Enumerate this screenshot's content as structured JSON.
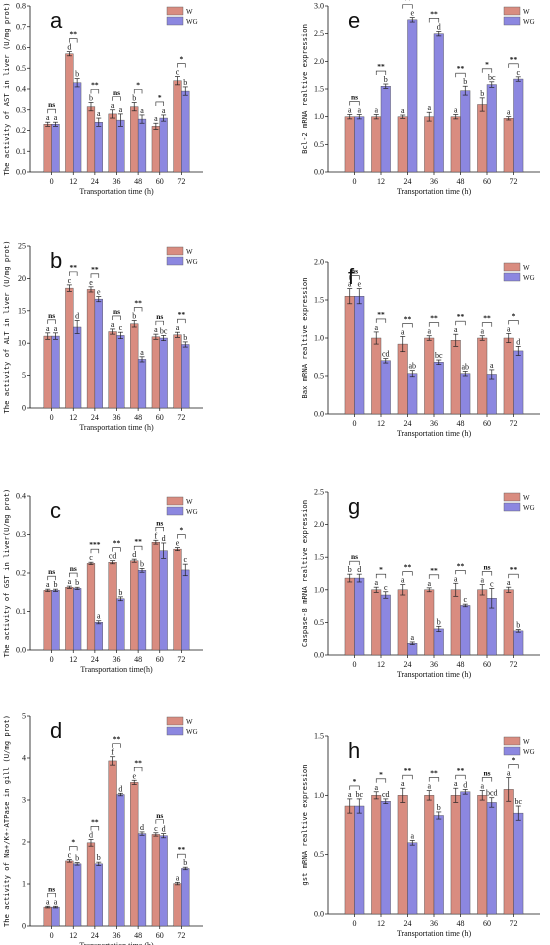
{
  "colors": {
    "W": "#d98c80",
    "WG": "#8c87e0"
  },
  "chart_data": [
    {
      "panel": "a",
      "type": "bar",
      "ylabel": "The activity of AST in liver (U/mg prot)",
      "xlabel": "Transportation time (h)",
      "categories": [
        "0",
        "12",
        "24",
        "36",
        "48",
        "60",
        "72"
      ],
      "ylim": [
        0,
        0.8
      ],
      "yticks": [
        "0.0",
        "0.1",
        "0.2",
        "0.3",
        "0.4",
        "0.5",
        "0.6",
        "0.7",
        "0.8"
      ],
      "legend": [
        "W",
        "WG"
      ],
      "series": [
        {
          "name": "W",
          "values": [
            0.23,
            0.57,
            0.315,
            0.28,
            0.315,
            0.22,
            0.44
          ],
          "errors": [
            0.01,
            0.01,
            0.02,
            0.02,
            0.02,
            0.015,
            0.02
          ],
          "letters": [
            "a",
            "d",
            "b",
            "a",
            "b",
            "a",
            "c"
          ]
        },
        {
          "name": "WG",
          "values": [
            0.23,
            0.43,
            0.24,
            0.25,
            0.255,
            0.26,
            0.39
          ],
          "errors": [
            0.01,
            0.02,
            0.02,
            0.03,
            0.02,
            0.015,
            0.02
          ],
          "letters": [
            "a",
            "b",
            "a",
            "a",
            "a",
            "a",
            "b"
          ]
        }
      ],
      "significance": [
        "ns",
        "**",
        "**",
        "ns",
        "*",
        "*",
        "*"
      ]
    },
    {
      "panel": "b",
      "type": "bar",
      "ylabel": "The activity of ALT in liver (U/mg prot)",
      "xlabel": "Transportation time (h)",
      "categories": [
        "0",
        "12",
        "24",
        "36",
        "48",
        "60",
        "72"
      ],
      "ylim": [
        0,
        25
      ],
      "yticks": [
        "0",
        "5",
        "10",
        "15",
        "20",
        "25"
      ],
      "legend": [
        "W",
        "WG"
      ],
      "series": [
        {
          "name": "W",
          "values": [
            11.1,
            18.5,
            18.3,
            11.8,
            13.0,
            11.0,
            11.3
          ],
          "errors": [
            0.5,
            0.5,
            0.4,
            0.4,
            0.5,
            0.4,
            0.4
          ],
          "letters": [
            "a",
            "c",
            "e",
            "a",
            "b",
            "a",
            "a"
          ]
        },
        {
          "name": "WG",
          "values": [
            11.1,
            12.5,
            16.8,
            11.2,
            7.5,
            10.8,
            9.8
          ],
          "errors": [
            0.5,
            1.0,
            0.4,
            0.5,
            0.4,
            0.4,
            0.4
          ],
          "letters": [
            "a",
            "d",
            "e",
            "c",
            "a",
            "bc",
            "b"
          ]
        }
      ],
      "significance": [
        "ns",
        "**",
        "**",
        "ns",
        "**",
        "ns",
        "**"
      ]
    },
    {
      "panel": "c",
      "type": "bar",
      "ylabel": "The activity of GST in liver(U/mg prot)",
      "xlabel": "Transportation time(h)",
      "categories": [
        "0",
        "12",
        "24",
        "36",
        "48",
        "60",
        "72"
      ],
      "ylim": [
        0,
        0.4
      ],
      "yticks": [
        "0.0",
        "0.1",
        "0.2",
        "0.3",
        "0.4"
      ],
      "legend": [
        "W",
        "WG"
      ],
      "series": [
        {
          "name": "W",
          "values": [
            0.155,
            0.163,
            0.225,
            0.228,
            0.232,
            0.28,
            0.262
          ],
          "errors": [
            0.003,
            0.003,
            0.003,
            0.004,
            0.004,
            0.005,
            0.004
          ],
          "letters": [
            "a",
            "a",
            "c",
            "cd",
            "d",
            "f",
            "e"
          ]
        },
        {
          "name": "WG",
          "values": [
            0.155,
            0.16,
            0.072,
            0.133,
            0.207,
            0.258,
            0.208
          ],
          "errors": [
            0.003,
            0.003,
            0.004,
            0.005,
            0.005,
            0.02,
            0.015
          ],
          "letters": [
            "b",
            "b",
            "a",
            "b",
            "b",
            "d",
            "c"
          ]
        }
      ],
      "significance": [
        "ns",
        "ns",
        "***",
        "**",
        "**",
        "ns",
        "*"
      ]
    },
    {
      "panel": "d",
      "type": "bar",
      "ylabel": "The activity of Na+/K+-ATPase in gill (U/mg prot)",
      "xlabel": "Transportation time (h)",
      "categories": [
        "0",
        "12",
        "24",
        "36",
        "48",
        "60",
        "72"
      ],
      "ylim": [
        0,
        5
      ],
      "yticks": [
        "0",
        "1",
        "2",
        "3",
        "4",
        "5"
      ],
      "legend": [
        "W",
        "WG"
      ],
      "series": [
        {
          "name": "W",
          "values": [
            0.45,
            1.55,
            1.98,
            3.93,
            3.42,
            2.18,
            1.01
          ],
          "errors": [
            0.02,
            0.03,
            0.08,
            0.1,
            0.05,
            0.04,
            0.03
          ],
          "letters": [
            "a",
            "c",
            "d",
            "f",
            "e",
            "c",
            "a"
          ]
        },
        {
          "name": "WG",
          "values": [
            0.45,
            1.48,
            1.48,
            3.13,
            2.2,
            2.15,
            1.37
          ],
          "errors": [
            0.02,
            0.03,
            0.04,
            0.03,
            0.04,
            0.05,
            0.03
          ],
          "letters": [
            "a",
            "b",
            "b",
            "d",
            "d",
            "d",
            "b"
          ]
        }
      ],
      "significance": [
        "ns",
        "*",
        "**",
        "**",
        "**",
        "ns",
        "**"
      ]
    },
    {
      "panel": "e",
      "type": "bar",
      "ylabel": "Bcl-2 mRNA realtive expression",
      "xlabel": "Transportation time (h)",
      "categories": [
        "0",
        "12",
        "24",
        "36",
        "48",
        "60",
        "72"
      ],
      "ylim": [
        0,
        3.0
      ],
      "yticks": [
        "0.0",
        "0.5",
        "1.0",
        "1.5",
        "2.0",
        "2.5",
        "3.0"
      ],
      "legend": [
        "W",
        "WG"
      ],
      "series": [
        {
          "name": "W",
          "values": [
            1.0,
            1.0,
            1.0,
            1.0,
            1.0,
            1.22,
            0.97
          ],
          "errors": [
            0.04,
            0.04,
            0.03,
            0.08,
            0.04,
            0.12,
            0.03
          ],
          "letters": [
            "a",
            "a",
            "a",
            "a",
            "a",
            "b",
            "a"
          ]
        },
        {
          "name": "WG",
          "values": [
            1.0,
            1.55,
            2.75,
            2.5,
            1.47,
            1.58,
            1.68
          ],
          "errors": [
            0.04,
            0.04,
            0.04,
            0.04,
            0.08,
            0.05,
            0.04
          ],
          "letters": [
            "a",
            "b",
            "e",
            "d",
            "b",
            "bc",
            "c"
          ]
        }
      ],
      "significance": [
        "ns",
        "**",
        "**",
        "**",
        "**",
        "*",
        "**"
      ]
    },
    {
      "panel": "f",
      "type": "bar",
      "ylabel": "Bax mRNA realtive expression",
      "xlabel": "Transportation time (h)",
      "categories": [
        "0",
        "12",
        "24",
        "36",
        "48",
        "60",
        "72"
      ],
      "ylim": [
        0,
        2.0
      ],
      "yticks": [
        "0.0",
        "0.5",
        "1.0",
        "1.5",
        "2.0"
      ],
      "legend": [
        "W",
        "WG"
      ],
      "series": [
        {
          "name": "W",
          "values": [
            1.55,
            1.0,
            0.92,
            1.0,
            0.97,
            1.0,
            1.0
          ],
          "errors": [
            0.1,
            0.08,
            0.1,
            0.03,
            0.08,
            0.03,
            0.06
          ],
          "letters": [
            "a",
            "a",
            "a",
            "a",
            "a",
            "a",
            "a"
          ]
        },
        {
          "name": "WG",
          "values": [
            1.55,
            0.7,
            0.53,
            0.68,
            0.53,
            0.52,
            0.83
          ],
          "errors": [
            0.1,
            0.03,
            0.04,
            0.03,
            0.03,
            0.06,
            0.06
          ],
          "letters": [
            "e",
            "cd",
            "ab",
            "bc",
            "ab",
            "a",
            "d"
          ]
        }
      ],
      "significance": [
        "ns",
        "**",
        "**",
        "**",
        "**",
        "**",
        "*"
      ]
    },
    {
      "panel": "g",
      "type": "bar",
      "ylabel": "Caspase-8 mRNA realtive expression",
      "xlabel": "Transportation time (h)",
      "categories": [
        "0",
        "12",
        "24",
        "36",
        "48",
        "60",
        "72"
      ],
      "ylim": [
        0,
        2.5
      ],
      "yticks": [
        "0.0",
        "0.5",
        "1.0",
        "1.5",
        "2.0",
        "2.5"
      ],
      "legend": [
        "W",
        "WG"
      ],
      "series": [
        {
          "name": "W",
          "values": [
            1.18,
            1.0,
            1.0,
            1.0,
            1.0,
            1.0,
            1.0
          ],
          "errors": [
            0.06,
            0.04,
            0.08,
            0.03,
            0.1,
            0.08,
            0.04
          ],
          "letters": [
            "b",
            "a",
            "a",
            "a",
            "a",
            "a",
            "a"
          ]
        },
        {
          "name": "WG",
          "values": [
            1.18,
            0.92,
            0.18,
            0.4,
            0.76,
            0.87,
            0.37
          ],
          "errors": [
            0.06,
            0.05,
            0.02,
            0.04,
            0.02,
            0.15,
            0.02
          ],
          "letters": [
            "d",
            "c",
            "a",
            "b",
            "c",
            "c",
            "b"
          ]
        }
      ],
      "significance": [
        "ns",
        "*",
        "**",
        "**",
        "**",
        "ns",
        "**"
      ]
    },
    {
      "panel": "h",
      "type": "bar",
      "ylabel": "gst mRNA realtive expression",
      "xlabel": "Transportation time (h)",
      "categories": [
        "0",
        "12",
        "24",
        "36",
        "48",
        "60",
        "72"
      ],
      "ylim": [
        0,
        1.5
      ],
      "yticks": [
        "0.0",
        "0.5",
        "1.0",
        "1.5"
      ],
      "legend": [
        "W",
        "WG"
      ],
      "series": [
        {
          "name": "W",
          "values": [
            0.91,
            1.0,
            1.0,
            1.0,
            1.0,
            1.0,
            1.05
          ],
          "errors": [
            0.06,
            0.03,
            0.06,
            0.04,
            0.06,
            0.04,
            0.1
          ],
          "letters": [
            "a",
            "a",
            "a",
            "a",
            "a",
            "a",
            "a"
          ]
        },
        {
          "name": "WG",
          "values": [
            0.91,
            0.95,
            0.6,
            0.83,
            1.03,
            0.94,
            0.85
          ],
          "errors": [
            0.06,
            0.02,
            0.02,
            0.03,
            0.02,
            0.04,
            0.06
          ],
          "letters": [
            "bc",
            "cd",
            "a",
            "b",
            "d",
            "bcd",
            "bc"
          ]
        }
      ],
      "significance": [
        "*",
        "*",
        "**",
        "**",
        "**",
        "ns",
        "*"
      ]
    }
  ]
}
